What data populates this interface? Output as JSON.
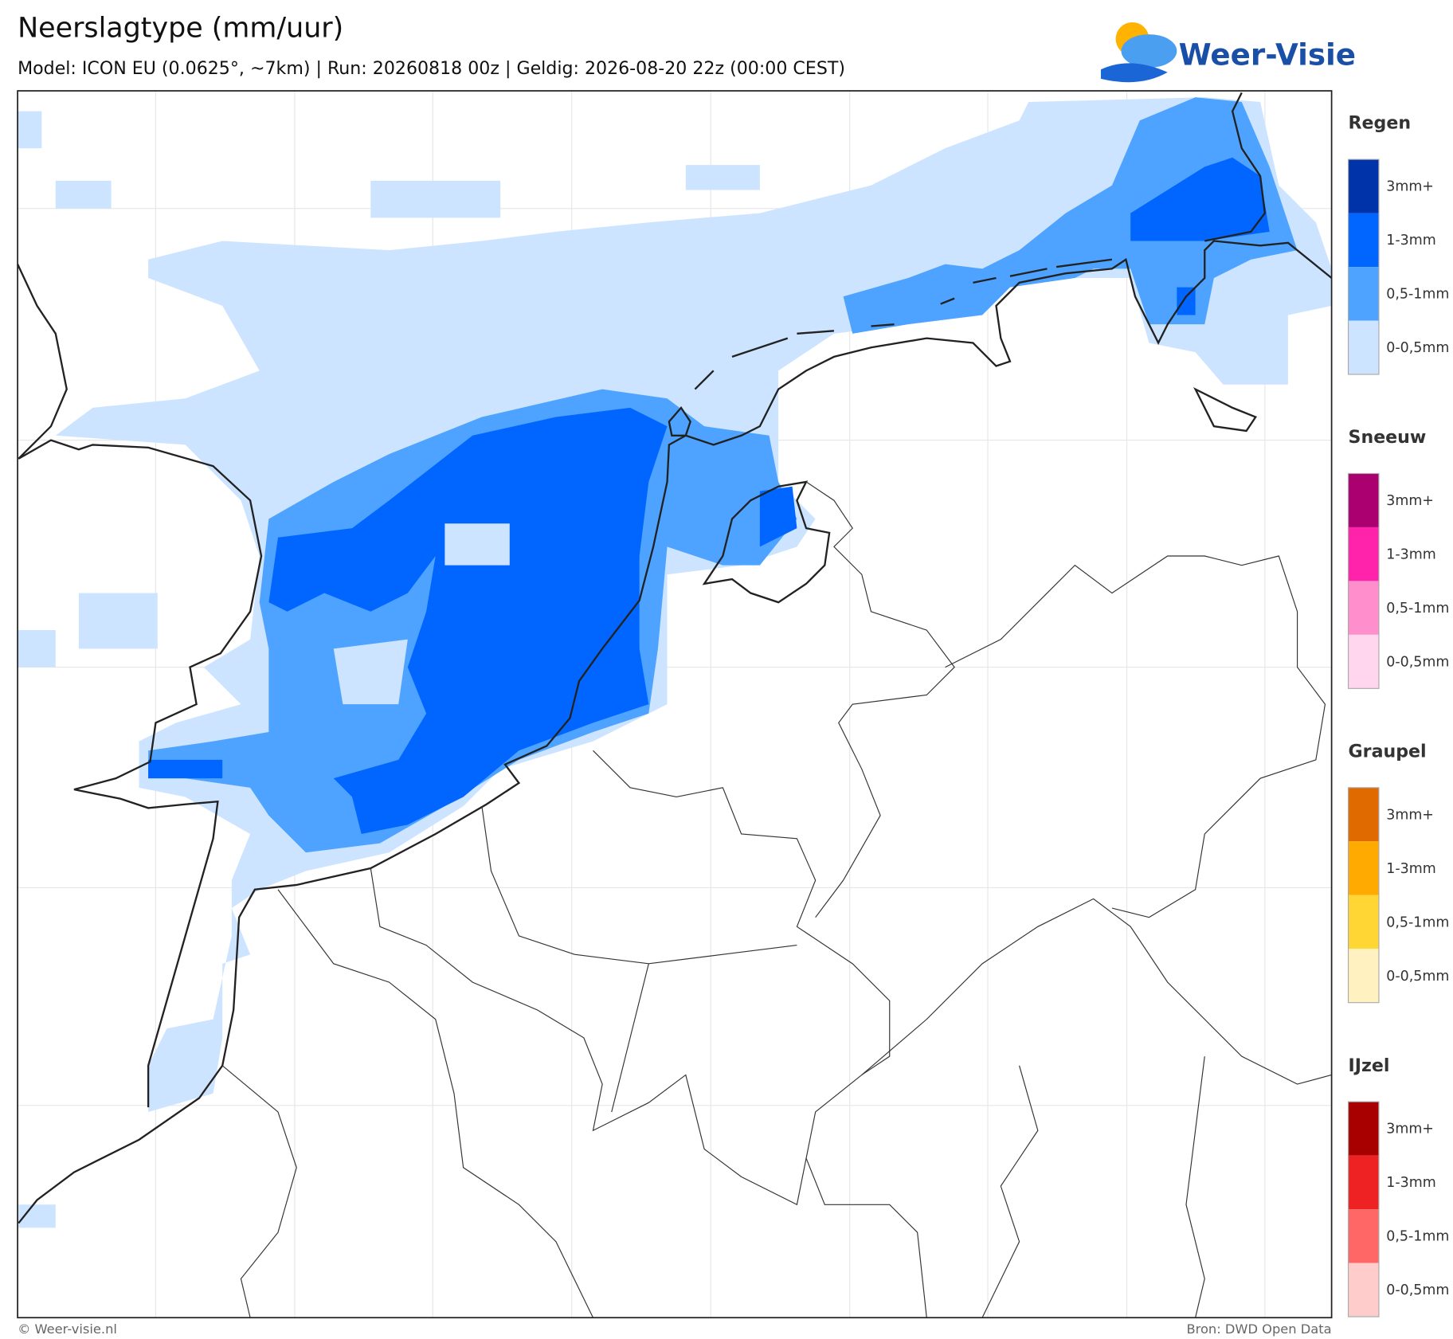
{
  "header": {
    "title": "Neerslagtype (mm/uur)",
    "subtitle": "Model: ICON EU (0.0625°, ~7km)  |  Run: 20260818 00z  |  Geldig: 2026-08-20 22z (00:00 CEST)"
  },
  "logo": {
    "text": "Weer-Visie"
  },
  "legend": [
    {
      "title": "Regen",
      "items": [
        {
          "label": "3mm+",
          "color": "#0033aa"
        },
        {
          "label": "1-3mm",
          "color": "#0066ff"
        },
        {
          "label": "0,5-1mm",
          "color": "#4da3ff"
        },
        {
          "label": "0-0,5mm",
          "color": "#cce4ff"
        }
      ]
    },
    {
      "title": "Sneeuw",
      "items": [
        {
          "label": "3mm+",
          "color": "#aa0070"
        },
        {
          "label": "1-3mm",
          "color": "#ff22aa"
        },
        {
          "label": "0,5-1mm",
          "color": "#ff8fcc"
        },
        {
          "label": "0-0,5mm",
          "color": "#ffd6ee"
        }
      ]
    },
    {
      "title": "Graupel",
      "items": [
        {
          "label": "3mm+",
          "color": "#e06a00"
        },
        {
          "label": "1-3mm",
          "color": "#ffaa00"
        },
        {
          "label": "0,5-1mm",
          "color": "#ffd633"
        },
        {
          "label": "0-0,5mm",
          "color": "#fff2c0"
        }
      ]
    },
    {
      "title": "IJzel",
      "items": [
        {
          "label": "3mm+",
          "color": "#a80000"
        },
        {
          "label": "1-3mm",
          "color": "#ee2222"
        },
        {
          "label": "0,5-1mm",
          "color": "#ff6666"
        },
        {
          "label": "0-0,5mm",
          "color": "#ffcccc"
        }
      ]
    }
  ],
  "footer": {
    "left": "© Weer-visie.nl",
    "right": "Bron: DWD Open Data"
  }
}
